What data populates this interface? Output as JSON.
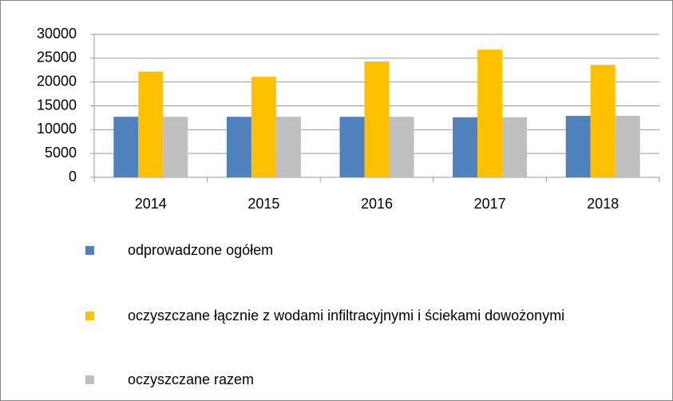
{
  "chart_data": {
    "type": "bar",
    "categories": [
      "2014",
      "2015",
      "2016",
      "2017",
      "2018"
    ],
    "series": [
      {
        "name": "odprowadzone ogółem",
        "color": "#4f81bd",
        "values": [
          12700,
          12700,
          12700,
          12600,
          12900
        ]
      },
      {
        "name": "oczyszczane łącznie z wodami infiltracyjnymi i ściekami dowożonymi",
        "color": "#ffc000",
        "values": [
          22200,
          21100,
          24300,
          26800,
          23600
        ]
      },
      {
        "name": "oczyszczane razem",
        "color": "#bfbfbf",
        "values": [
          12700,
          12700,
          12700,
          12600,
          12900
        ]
      }
    ],
    "ylim": [
      0,
      30000
    ],
    "yticks": [
      0,
      5000,
      10000,
      15000,
      20000,
      25000,
      30000
    ],
    "grid": true,
    "legend": "bottom"
  }
}
